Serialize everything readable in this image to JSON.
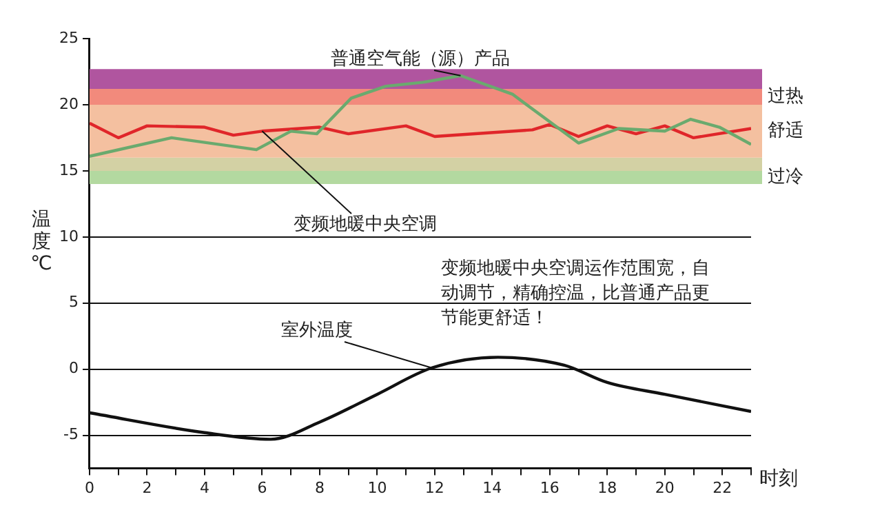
{
  "chart_data": {
    "type": "line",
    "ylabel": "温度℃",
    "xlabel": "时刻",
    "xlim": [
      0,
      23
    ],
    "xticks": [
      0,
      {
        "value": 1,
        "label": null
      },
      2,
      {
        "value": 3,
        "label": null
      },
      4,
      {
        "value": 5,
        "label": null
      },
      6,
      {
        "value": 7,
        "label": null
      },
      8,
      {
        "value": 9,
        "label": null
      },
      10,
      {
        "value": 11,
        "label": null
      },
      12,
      {
        "value": 13,
        "label": null
      },
      14,
      {
        "value": 15,
        "label": null
      },
      16,
      {
        "value": 17,
        "label": null
      },
      18,
      {
        "value": 19,
        "label": null
      },
      20,
      {
        "value": 21,
        "label": null
      },
      22,
      {
        "value": 23,
        "label": null
      }
    ],
    "ylim": [
      -7.5,
      25
    ],
    "yticks": [
      -5,
      0,
      5,
      10,
      15,
      20,
      25
    ],
    "grid": "y",
    "legend": false,
    "marker": "none",
    "line_style": "solid",
    "series": [
      {
        "name": "普通空气能（源）产品",
        "color": "#6aaa6e",
        "x": [
          0,
          2.85,
          5.8,
          7,
          7.9,
          9.1,
          10.3,
          11.6,
          12.9,
          14.7,
          17,
          18.4,
          20,
          20.9,
          21.9,
          23
        ],
        "values": [
          16.1,
          17.5,
          16.6,
          18,
          17.8,
          20.5,
          21.4,
          21.7,
          22.2,
          20.8,
          17.1,
          18.2,
          18,
          18.9,
          18.3,
          17
        ]
      },
      {
        "name": "变频地暖中央空调",
        "color": "#e0262a",
        "x": [
          0,
          1,
          2,
          4,
          5,
          6,
          8,
          9,
          11,
          12,
          15.4,
          16,
          17,
          18,
          19,
          20,
          21,
          23
        ],
        "values": [
          18.6,
          17.5,
          18.4,
          18.3,
          17.7,
          18,
          18.3,
          17.8,
          18.4,
          17.6,
          18.1,
          18.5,
          17.6,
          18.4,
          17.8,
          18.4,
          17.5,
          18.2
        ]
      },
      {
        "name": "室外温度",
        "color": "#111111",
        "x": [
          0,
          4,
          6.3,
          8,
          10,
          11.9,
          14.2,
          16.5,
          18,
          20,
          23
        ],
        "values": [
          -3.3,
          -4.8,
          -5.3,
          -4,
          -1.9,
          0.1,
          0.9,
          0.3,
          -1,
          -1.9,
          -3.2
        ]
      }
    ],
    "bands": [
      {
        "axis": "y",
        "from": 14,
        "to": 15,
        "color": "#b3d9a0",
        "label": "过冷"
      },
      {
        "axis": "y",
        "from": 15,
        "to": 16,
        "color": "#d3d1a4"
      },
      {
        "axis": "y",
        "from": 16,
        "to": 20,
        "color": "#f4c0a0",
        "label": "舒适"
      },
      {
        "axis": "y",
        "from": 20,
        "to": 21.2,
        "color": "#f28a7c",
        "label": "过热"
      },
      {
        "axis": "y",
        "from": 21.2,
        "to": 22.7,
        "color": "#b0559f"
      }
    ],
    "annotations": [
      "变频地暖中央空调运作范围宽，自动调节，精确控温，比普通产品更节能更舒适！"
    ]
  }
}
